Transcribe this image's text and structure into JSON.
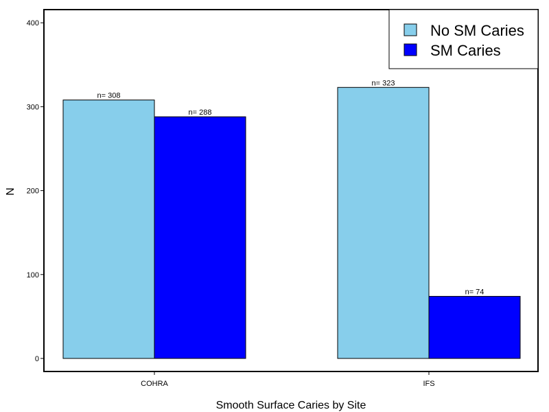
{
  "chart_data": {
    "type": "bar",
    "title": "",
    "xlabel": "Smooth Surface Caries by Site",
    "ylabel": "N",
    "categories": [
      "COHRA",
      "IFS"
    ],
    "series": [
      {
        "name": "No SM Caries",
        "color": "#87ceeb",
        "values": [
          308,
          323
        ],
        "labels": [
          "n= 308",
          "n= 323"
        ]
      },
      {
        "name": "SM Caries",
        "color": "#0000ff",
        "values": [
          288,
          74
        ],
        "labels": [
          "n= 288",
          "n= 74"
        ]
      }
    ],
    "ylim": [
      0,
      420
    ],
    "yticks": [
      0,
      100,
      200,
      300,
      400
    ],
    "legend_position": "top-right",
    "grid": false
  }
}
